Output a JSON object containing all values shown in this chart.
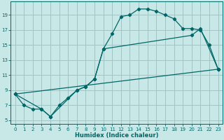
{
  "xlabel": "Humidex (Indice chaleur)",
  "bg_color": "#c8e8e8",
  "grid_color": "#a0c4c4",
  "line_color": "#006666",
  "xlim": [
    -0.5,
    23.5
  ],
  "ylim": [
    4.5,
    20.8
  ],
  "xticks": [
    0,
    1,
    2,
    3,
    4,
    5,
    6,
    7,
    8,
    9,
    10,
    11,
    12,
    13,
    14,
    15,
    16,
    17,
    18,
    19,
    20,
    21,
    22,
    23
  ],
  "yticks": [
    5,
    7,
    9,
    11,
    13,
    15,
    17,
    19
  ],
  "line1_x": [
    0,
    1,
    2,
    3,
    4,
    5,
    6,
    7,
    8,
    9,
    10,
    11,
    12,
    13,
    14,
    15,
    16,
    17,
    18,
    19,
    20,
    21,
    22,
    23
  ],
  "line1_y": [
    8.5,
    7.0,
    6.5,
    6.5,
    5.5,
    7.0,
    8.0,
    9.0,
    9.5,
    10.5,
    14.5,
    16.5,
    18.8,
    19.0,
    19.8,
    19.8,
    19.5,
    19.0,
    18.5,
    17.2,
    17.2,
    17.0,
    15.0,
    11.8
  ],
  "line2_x": [
    0,
    3,
    4,
    7,
    8,
    9,
    10,
    20,
    21,
    23
  ],
  "line2_y": [
    8.5,
    6.5,
    5.5,
    9.0,
    9.5,
    10.5,
    14.5,
    16.3,
    17.2,
    11.8
  ],
  "line3_x": [
    0,
    23
  ],
  "line3_y": [
    8.5,
    11.8
  ]
}
